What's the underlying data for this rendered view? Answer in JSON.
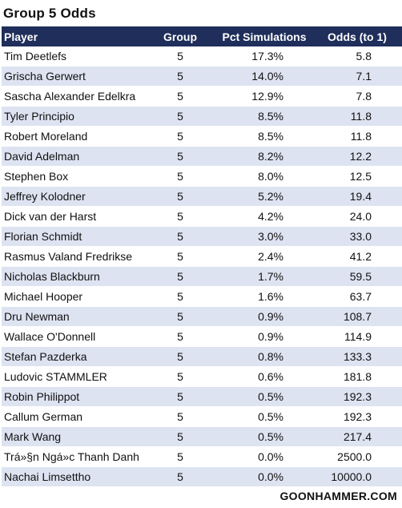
{
  "title": "Group 5 Odds",
  "columns": [
    "Player",
    "Group",
    "Pct Simulations",
    "Odds (to 1)"
  ],
  "rows": [
    {
      "player": "Tim Deetlefs",
      "group": "5",
      "pct": "17.3%",
      "odds": "5.8"
    },
    {
      "player": "Grischa Gerwert",
      "group": "5",
      "pct": "14.0%",
      "odds": "7.1"
    },
    {
      "player": "Sascha Alexander Edelkra",
      "group": "5",
      "pct": "12.9%",
      "odds": "7.8"
    },
    {
      "player": "Tyler Principio",
      "group": "5",
      "pct": "8.5%",
      "odds": "11.8"
    },
    {
      "player": "Robert Moreland",
      "group": "5",
      "pct": "8.5%",
      "odds": "11.8"
    },
    {
      "player": "David Adelman",
      "group": "5",
      "pct": "8.2%",
      "odds": "12.2"
    },
    {
      "player": "Stephen Box",
      "group": "5",
      "pct": "8.0%",
      "odds": "12.5"
    },
    {
      "player": "Jeffrey Kolodner",
      "group": "5",
      "pct": "5.2%",
      "odds": "19.4"
    },
    {
      "player": "Dick van der Harst",
      "group": "5",
      "pct": "4.2%",
      "odds": "24.0"
    },
    {
      "player": "Florian Schmidt",
      "group": "5",
      "pct": "3.0%",
      "odds": "33.0"
    },
    {
      "player": "Rasmus Valand Fredrikse",
      "group": "5",
      "pct": "2.4%",
      "odds": "41.2"
    },
    {
      "player": "Nicholas Blackburn",
      "group": "5",
      "pct": "1.7%",
      "odds": "59.5"
    },
    {
      "player": "Michael Hooper",
      "group": "5",
      "pct": "1.6%",
      "odds": "63.7"
    },
    {
      "player": "Dru Newman",
      "group": "5",
      "pct": "0.9%",
      "odds": "108.7"
    },
    {
      "player": "Wallace O'Donnell",
      "group": "5",
      "pct": "0.9%",
      "odds": "114.9"
    },
    {
      "player": "Stefan Pazderka",
      "group": "5",
      "pct": "0.8%",
      "odds": "133.3"
    },
    {
      "player": "Ludovic STAMMLER",
      "group": "5",
      "pct": "0.6%",
      "odds": "181.8"
    },
    {
      "player": "Robin Philippot",
      "group": "5",
      "pct": "0.5%",
      "odds": "192.3"
    },
    {
      "player": "Callum German",
      "group": "5",
      "pct": "0.5%",
      "odds": "192.3"
    },
    {
      "player": "Mark Wang",
      "group": "5",
      "pct": "0.5%",
      "odds": "217.4"
    },
    {
      "player": "Trá»§n Ngá»c Thanh Danh",
      "group": "5",
      "pct": "0.0%",
      "odds": "2500.0"
    },
    {
      "player": "Nachai Limsettho",
      "group": "5",
      "pct": "0.0%",
      "odds": "10000.0"
    }
  ],
  "credit": "GOONHAMMER.COM",
  "colors": {
    "header_bg": "#1f2e5a",
    "alt_row": "#dde3f1"
  }
}
